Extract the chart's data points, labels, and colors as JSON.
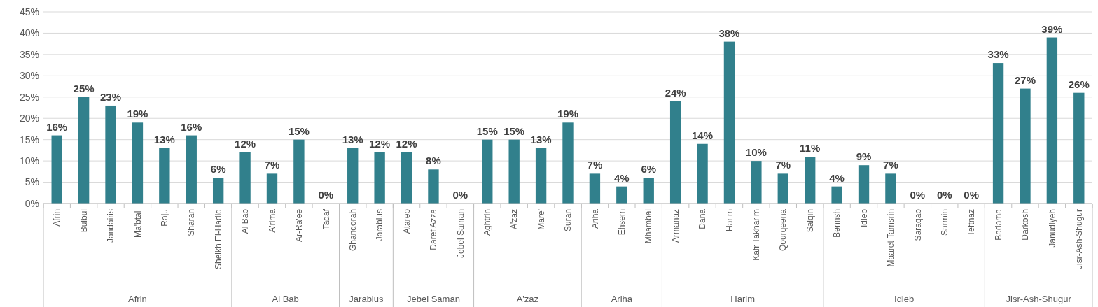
{
  "chart_data": {
    "type": "bar",
    "categories": [
      "Afrin",
      "Bulbul",
      "Jandairis",
      "Ma'btali",
      "Raju",
      "Sharan",
      "Sheikh El-Hadid",
      "Al Bab",
      "A'rima",
      "Ar-Ra'ee",
      "Tadaf",
      "Ghandorah",
      "Jarablus",
      "Atareb",
      "Daret Azza",
      "Jebel Saman",
      "Aghtrin",
      "A'zaz",
      "Mare'",
      "Suran",
      "Ariha",
      "Ehsem",
      "Mhambal",
      "Armanaz",
      "Dana",
      "Harim",
      "Kafr Takharim",
      "Qourqeena",
      "Salqin",
      "Bennsh",
      "Idleb",
      "Maaret Tamsrin",
      "Saraqab",
      "Sarmin",
      "Teftnaz",
      "Badama",
      "Darkosh",
      "Janudiyeh",
      "Jisr-Ash-Shugur"
    ],
    "values": [
      16,
      25,
      23,
      19,
      13,
      16,
      6,
      12,
      7,
      15,
      0,
      13,
      12,
      12,
      8,
      0,
      15,
      15,
      13,
      19,
      7,
      4,
      6,
      24,
      14,
      38,
      10,
      7,
      11,
      4,
      9,
      7,
      0,
      0,
      0,
      33,
      27,
      39,
      26
    ],
    "value_labels": [
      "16%",
      "25%",
      "23%",
      "19%",
      "13%",
      "16%",
      "6%",
      "12%",
      "7%",
      "15%",
      "0%",
      "13%",
      "12%",
      "12%",
      "8%",
      "0%",
      "15%",
      "15%",
      "13%",
      "19%",
      "7%",
      "4%",
      "6%",
      "24%",
      "14%",
      "38%",
      "10%",
      "7%",
      "11%",
      "4%",
      "9%",
      "7%",
      "0%",
      "0%",
      "0%",
      "33%",
      "27%",
      "39%",
      "26%"
    ],
    "color": "#31808c",
    "ylim": [
      0,
      45
    ],
    "yticks": [
      {
        "value": 0,
        "label": "0%"
      },
      {
        "value": 5,
        "label": "5%"
      },
      {
        "value": 10,
        "label": "10%"
      },
      {
        "value": 15,
        "label": "15%"
      },
      {
        "value": 20,
        "label": "20%"
      },
      {
        "value": 25,
        "label": "25%"
      },
      {
        "value": 30,
        "label": "30%"
      },
      {
        "value": 35,
        "label": "35%"
      },
      {
        "value": 40,
        "label": "40%"
      },
      {
        "value": 45,
        "label": "45%"
      }
    ],
    "grid": "y",
    "annotations": [
      "Afrin",
      "Al Bab",
      "Jarablus",
      "Jebel Saman",
      "A'zaz",
      "Ariha",
      "Harim",
      "Idleb",
      "Jisr-Ash-Shugur"
    ]
  }
}
